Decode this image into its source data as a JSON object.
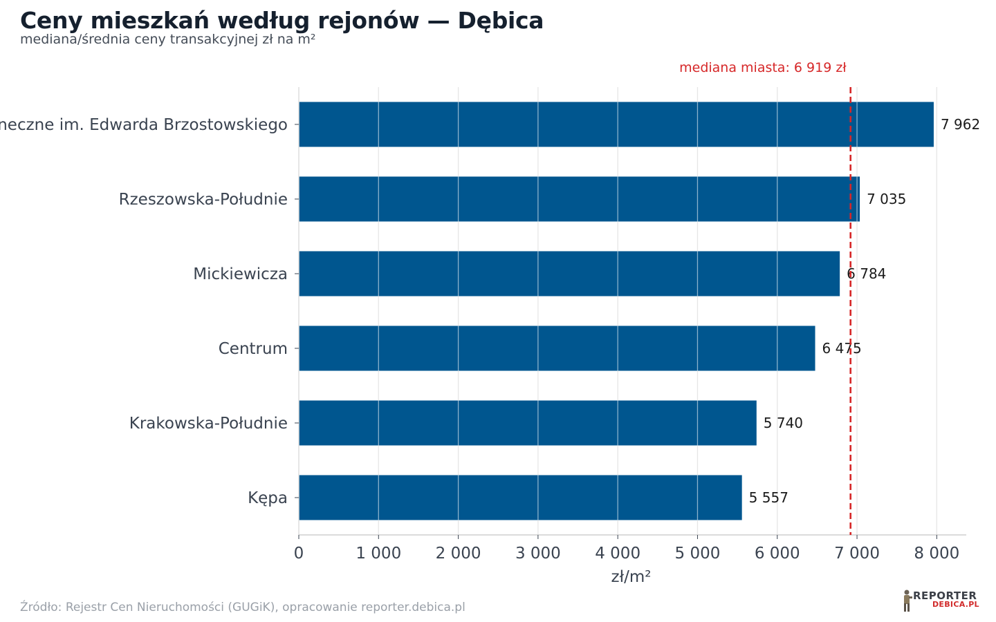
{
  "title": "Ceny mieszkań według rejonów — Dębica",
  "subtitle": "mediana/średnia ceny transakcyjnej zł na m²",
  "source": "Źródło: Rejestr Cen Nieruchomości (GUGiK), opracowanie reporter.debica.pl",
  "logo": {
    "line1": "REPORTER",
    "line2": "DEBICA.PL"
  },
  "colors": {
    "bar": "#00568f",
    "median": "#d62728",
    "grid": "#e6e6e6",
    "text": "#3a4350"
  },
  "chart_data": {
    "type": "bar",
    "orientation": "horizontal",
    "categories": [
      "Osiedle Mieszkaniowe Spółdzielni Mieszkaniowej Lokatorsko-Własnościowej Osiedle Mieszkaniowe Zasłoneczne im. Edwarda Brzostowskiego",
      "Rzeszowska-Południe",
      "Mickiewicza",
      "Centrum",
      "Krakowska-Południe",
      "Kępa"
    ],
    "values": [
      7962,
      7035,
      6784,
      6475,
      5740,
      5557
    ],
    "value_labels": [
      "7 962",
      "7 035",
      "6 784",
      "6 475",
      "5 740",
      "5 557"
    ],
    "xlabel": "zł/m²",
    "xlim": [
      0,
      8370
    ],
    "xticks": [
      0,
      1000,
      2000,
      3000,
      4000,
      5000,
      6000,
      7000,
      8000
    ],
    "xtick_labels": [
      "0",
      "1 000",
      "2 000",
      "3 000",
      "4 000",
      "5 000",
      "6 000",
      "7 000",
      "8 000"
    ],
    "grid": true,
    "reference_line": {
      "value": 6919,
      "label": "mediana miasta: 6 919 zł"
    }
  }
}
